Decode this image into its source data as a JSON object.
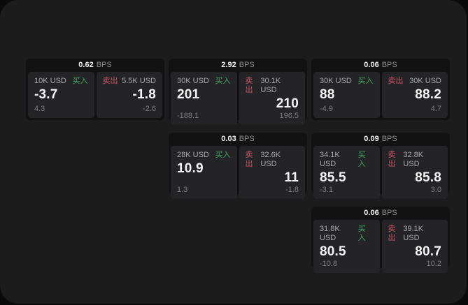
{
  "labels": {
    "bps_unit": "BPS",
    "buy": "买入",
    "sell": "卖出"
  },
  "colors": {
    "buy_green": "#42a264",
    "sell_red": "#c85567",
    "surface": "#1c1c1d",
    "card_background": "#121213",
    "tile_background": "#242426",
    "price_white": "#f5f5f5",
    "amount_gray": "#a8a8a8",
    "delta_gray": "#7d7d7d"
  },
  "cards": [
    {
      "bps": "0.62",
      "buy": {
        "amount": "10K USD",
        "price": "-3.7",
        "delta": "4.3"
      },
      "sell": {
        "amount": "5.5K USD",
        "price": "-1.8",
        "delta": "-2.6"
      }
    },
    {
      "bps": "2.92",
      "buy": {
        "amount": "30K USD",
        "price": "201",
        "delta": "-188.1"
      },
      "sell": {
        "amount": "30.1K USD",
        "price": "210",
        "delta": "196.5"
      }
    },
    {
      "bps": "0.06",
      "buy": {
        "amount": "30K USD",
        "price": "88",
        "delta": "-4.9"
      },
      "sell": {
        "amount": "30K USD",
        "price": "88.2",
        "delta": "4.7"
      }
    },
    {
      "bps": "0.03",
      "buy": {
        "amount": "28K USD",
        "price": "10.9",
        "delta": "1.3"
      },
      "sell": {
        "amount": "32.6K USD",
        "price": "11",
        "delta": "-1.8"
      }
    },
    {
      "bps": "0.09",
      "buy": {
        "amount": "34.1K USD",
        "price": "85.5",
        "delta": "-3.1"
      },
      "sell": {
        "amount": "32.8K USD",
        "price": "85.8",
        "delta": "3.0"
      }
    },
    {
      "bps": "0.06",
      "buy": {
        "amount": "31.8K USD",
        "price": "80.5",
        "delta": "-10.8"
      },
      "sell": {
        "amount": "39.1K USD",
        "price": "80.7",
        "delta": "10.2"
      }
    }
  ]
}
